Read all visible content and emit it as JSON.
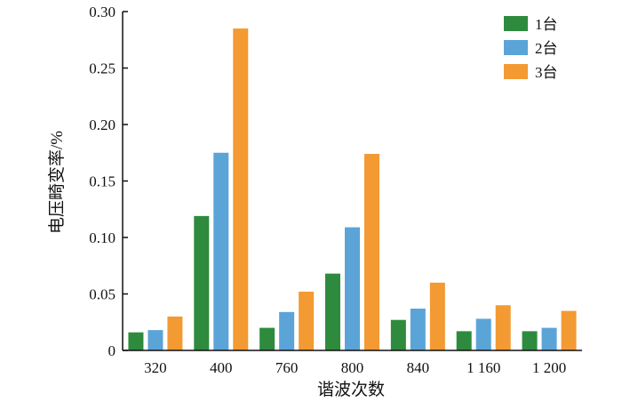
{
  "chart_data": {
    "type": "bar",
    "xlabel": "谐波次数",
    "ylabel": "电压畸变率/%",
    "categories": [
      "320",
      "400",
      "760",
      "800",
      "840",
      "1 160",
      "1 200"
    ],
    "ylim": [
      0,
      0.3
    ],
    "yticks": [
      "0",
      "0.05",
      "0.10",
      "0.15",
      "0.20",
      "0.25",
      "0.30"
    ],
    "grid": false,
    "legend_position": "top-right",
    "series": [
      {
        "name": "1台",
        "color": "#2e8b3e",
        "values": [
          0.016,
          0.119,
          0.02,
          0.068,
          0.027,
          0.017,
          0.017
        ]
      },
      {
        "name": "2台",
        "color": "#5ba4d8",
        "values": [
          0.018,
          0.175,
          0.034,
          0.109,
          0.037,
          0.028,
          0.02
        ]
      },
      {
        "name": "3台",
        "color": "#f39a33",
        "values": [
          0.03,
          0.285,
          0.052,
          0.174,
          0.06,
          0.04,
          0.035
        ]
      }
    ]
  }
}
